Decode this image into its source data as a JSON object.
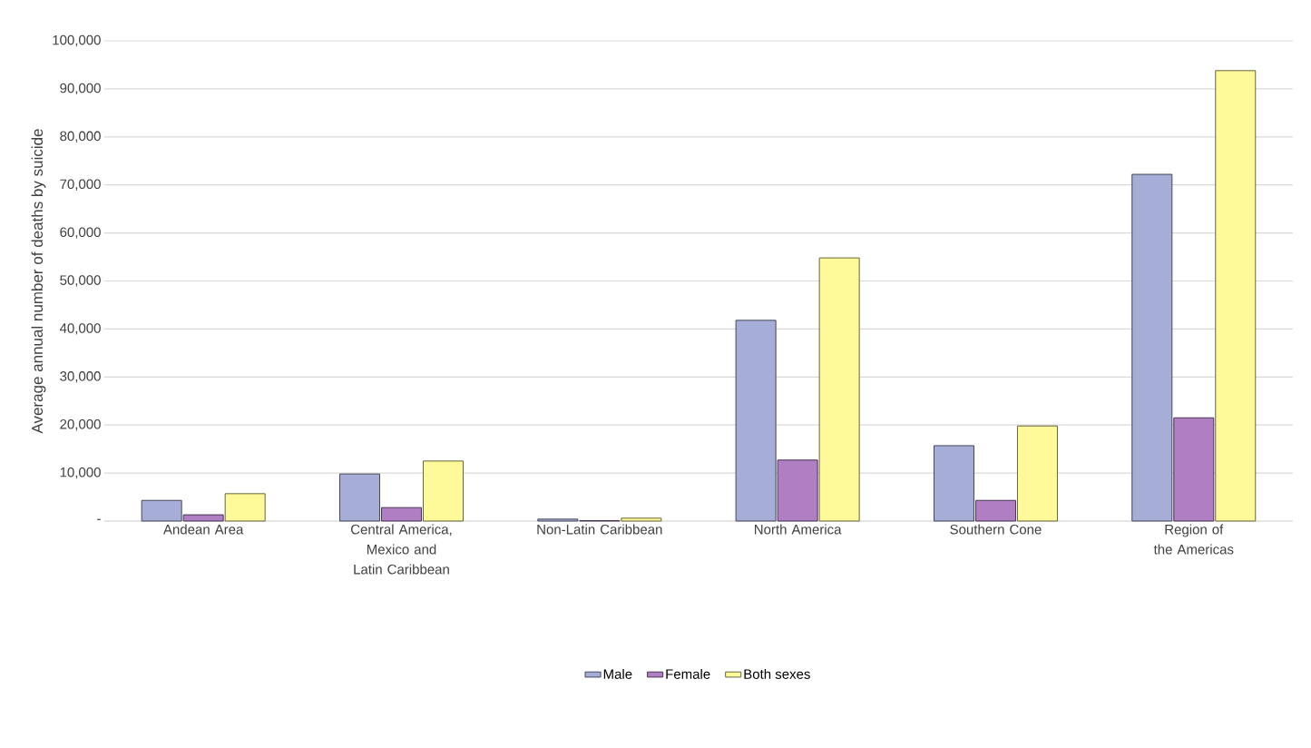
{
  "chart_data": {
    "type": "bar",
    "ylabel": "Average annual number of deaths by suicide",
    "categories": [
      "Andean Area",
      "Central America, Mexico and Latin Caribbean",
      "Non-Latin Caribbean",
      "North America",
      "Southern Cone",
      "Region of the Americas"
    ],
    "series": [
      {
        "name": "Male",
        "color": "#a6aed8",
        "values": [
          4300,
          9800,
          400,
          41800,
          15700,
          72200
        ]
      },
      {
        "name": "Female",
        "color": "#b07fc3",
        "values": [
          1300,
          2800,
          100,
          12700,
          4300,
          21500
        ]
      },
      {
        "name": "Both sexes",
        "color": "#fffa99",
        "values": [
          5700,
          12500,
          600,
          54800,
          19800,
          93800
        ]
      }
    ],
    "ylim": [
      0,
      100000
    ],
    "yticks": [
      {
        "value": 0,
        "label": "-"
      },
      {
        "value": 10000,
        "label": "10,000"
      },
      {
        "value": 20000,
        "label": "20,000"
      },
      {
        "value": 30000,
        "label": "30,000"
      },
      {
        "value": 40000,
        "label": "40,000"
      },
      {
        "value": 50000,
        "label": "50,000"
      },
      {
        "value": 60000,
        "label": "60,000"
      },
      {
        "value": 70000,
        "label": "70,000"
      },
      {
        "value": 80000,
        "label": "80,000"
      },
      {
        "value": 90000,
        "label": "90,000"
      },
      {
        "value": 100000,
        "label": "100,000"
      }
    ],
    "grid": "y",
    "legend": "bottom"
  }
}
